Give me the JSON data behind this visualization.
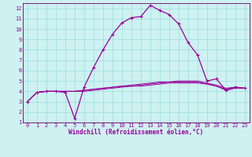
{
  "xlabel": "Windchill (Refroidissement éolien,°C)",
  "background_color": "#cef1f1",
  "line_color": "#990099",
  "grid_color": "#99dddd",
  "axis_color": "#660066",
  "xlim": [
    -0.5,
    23.5
  ],
  "ylim": [
    1,
    12.5
  ],
  "xticks": [
    0,
    1,
    2,
    3,
    4,
    5,
    6,
    7,
    8,
    9,
    10,
    11,
    12,
    13,
    14,
    15,
    16,
    17,
    18,
    19,
    20,
    21,
    22,
    23
  ],
  "yticks": [
    1,
    2,
    3,
    4,
    5,
    6,
    7,
    8,
    9,
    10,
    11,
    12
  ],
  "main_series": [
    3.0,
    3.9,
    4.0,
    4.0,
    3.9,
    1.4,
    4.4,
    6.3,
    8.0,
    9.5,
    10.6,
    11.1,
    11.2,
    12.3,
    11.8,
    11.4,
    10.5,
    8.7,
    7.5,
    5.0,
    5.2,
    4.1,
    4.4,
    4.3
  ],
  "flat_series": [
    [
      3.0,
      3.9,
      4.0,
      4.0,
      4.0,
      4.0,
      4.1,
      4.2,
      4.3,
      4.4,
      4.5,
      4.6,
      4.7,
      4.8,
      4.9,
      4.9,
      5.0,
      5.0,
      5.0,
      4.8,
      4.6,
      4.3,
      4.4,
      4.3
    ],
    [
      3.0,
      3.9,
      4.0,
      4.0,
      4.0,
      4.0,
      4.1,
      4.2,
      4.3,
      4.4,
      4.5,
      4.5,
      4.6,
      4.7,
      4.8,
      4.9,
      4.9,
      4.9,
      4.9,
      4.7,
      4.5,
      4.2,
      4.4,
      4.3
    ],
    [
      3.0,
      3.9,
      4.0,
      4.0,
      4.0,
      4.0,
      4.0,
      4.1,
      4.2,
      4.3,
      4.4,
      4.5,
      4.5,
      4.6,
      4.7,
      4.8,
      4.8,
      4.8,
      4.8,
      4.7,
      4.5,
      4.1,
      4.3,
      4.3
    ]
  ],
  "tick_fontsize": 5.0,
  "xlabel_fontsize": 5.5,
  "linewidth_main": 0.9,
  "linewidth_flat": 0.7,
  "marker_size": 3.0
}
